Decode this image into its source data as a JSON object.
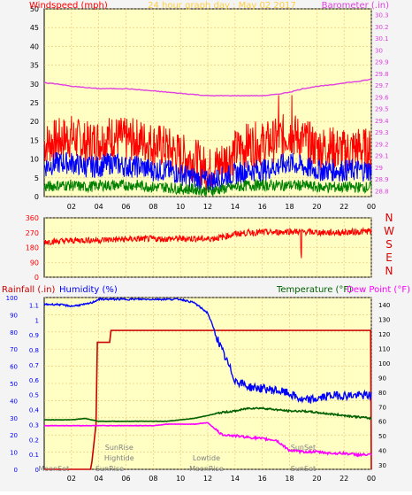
{
  "colors": {
    "frame_bg": "#f4f4f4",
    "plot_bg": "#ffffc4",
    "grid": "#e8c070",
    "wind_gust": "#ff0000",
    "wind_avg": "#0000ff",
    "wind_low": "#008000",
    "barometer": "#e040e0",
    "direction": "#ff0000",
    "rain": "#cc0000",
    "humidity": "#0000ff",
    "temperature": "#006000",
    "dewpoint": "#ff00ff",
    "letters": "#dd0000",
    "event_text": "#808080"
  },
  "top": {
    "left_label": "Windspeed (mph)",
    "title": "24 hour graph day : May 02 2017",
    "right_label": "Barometer (.in)",
    "left_ticks": [
      "0",
      "5",
      "10",
      "15",
      "20",
      "25",
      "30",
      "35",
      "40",
      "45",
      "50"
    ],
    "right_ticks": [
      "28.8",
      "28.9",
      "29",
      "29.1",
      "29.2",
      "29.3",
      "29.4",
      "29.5",
      "29.6",
      "29.7",
      "29.8",
      "29.9",
      "30",
      "30.1",
      "30.2",
      "30.3"
    ]
  },
  "x_ticks": [
    "02",
    "04",
    "06",
    "08",
    "10",
    "12",
    "14",
    "16",
    "18",
    "20",
    "22",
    "00"
  ],
  "direction": {
    "ticks": [
      "360",
      "270",
      "180",
      "90",
      "0"
    ],
    "compass": [
      "N",
      "W",
      "S",
      "E",
      "N"
    ]
  },
  "bottom": {
    "rain_label": "Rainfall (.in)",
    "humidity_label": "Humidity (%)",
    "temp_label": "Temperature (°F)",
    "dew_label": "Dew Point (°F)",
    "left_ticks_hum": [
      "0",
      "10",
      "20",
      "30",
      "40",
      "50",
      "60",
      "70",
      "80",
      "90",
      "100"
    ],
    "left_ticks_rain": [
      "0",
      "0.1",
      "0.2",
      "0.3",
      "0.4",
      "0.5",
      "0.6",
      "0.7",
      "0.8",
      "0.9",
      "1",
      "1.1"
    ],
    "right_ticks": [
      "30",
      "40",
      "50",
      "60",
      "70",
      "80",
      "90",
      "100",
      "110",
      "120",
      "130",
      "140"
    ],
    "events": [
      {
        "text": "MoonSet",
        "hour": 0.7,
        "row": 2
      },
      {
        "text": "SunRise",
        "hour": 5.5,
        "row": 0
      },
      {
        "text": "Hightide",
        "hour": 5.5,
        "row": 1
      },
      {
        "text": "SunRise",
        "hour": 4.8,
        "row": 2
      },
      {
        "text": "Lowtide",
        "hour": 11.9,
        "row": 1
      },
      {
        "text": "MoonRise",
        "hour": 11.9,
        "row": 2
      },
      {
        "text": "SunSet",
        "hour": 19.0,
        "row": 0
      },
      {
        "text": "SunSet",
        "hour": 19.0,
        "row": 2
      }
    ]
  },
  "chart_data": [
    {
      "type": "line",
      "title": "24 hour graph day : May 02 2017",
      "x": [
        0,
        1,
        2,
        3,
        4,
        5,
        6,
        7,
        8,
        9,
        10,
        11,
        12,
        13,
        14,
        15,
        16,
        17,
        18,
        19,
        20,
        21,
        22,
        23,
        24
      ],
      "xlabel": "",
      "ylabel": "Windspeed (mph)",
      "ylim": [
        0,
        50
      ],
      "y2label": "Barometer (.in)",
      "y2lim": [
        28.75,
        30.35
      ],
      "series": [
        {
          "name": "",
          "axis": "left",
          "values": [
            14,
            15,
            16,
            14,
            15,
            16,
            15,
            15,
            14,
            13,
            11,
            10,
            7,
            9,
            12,
            14,
            14,
            15,
            17,
            15,
            13,
            13,
            12,
            13,
            12
          ]
        },
        {
          "name": "",
          "axis": "left",
          "values": [
            8,
            9,
            9,
            8,
            8,
            9,
            8,
            8,
            7,
            7,
            6,
            5,
            4,
            5,
            6,
            7,
            7,
            8,
            9,
            8,
            7,
            7,
            7,
            7,
            7
          ]
        },
        {
          "name": "",
          "axis": "left",
          "values": [
            2.5,
            3,
            3,
            2.5,
            3,
            3,
            3,
            3,
            2.5,
            2.5,
            2,
            2,
            1.5,
            2,
            2.5,
            3,
            3,
            3,
            3,
            3,
            2.5,
            2.5,
            2.5,
            2.5,
            2.5
          ]
        },
        {
          "name": "",
          "axis": "right",
          "values": [
            29.72,
            29.71,
            29.69,
            29.68,
            29.67,
            29.67,
            29.67,
            29.66,
            29.65,
            29.64,
            29.63,
            29.62,
            29.61,
            29.61,
            29.61,
            29.61,
            29.61,
            29.62,
            29.64,
            29.67,
            29.69,
            29.7,
            29.72,
            29.73,
            29.75
          ]
        }
      ]
    },
    {
      "type": "line",
      "x": [
        0,
        1,
        2,
        3,
        4,
        5,
        6,
        7,
        8,
        9,
        10,
        11,
        12,
        13,
        14,
        15,
        16,
        17,
        18,
        19,
        20,
        21,
        22,
        23,
        24
      ],
      "ylim": [
        0,
        360
      ],
      "series": [
        {
          "name": "",
          "values": [
            215,
            218,
            222,
            225,
            225,
            228,
            230,
            232,
            232,
            232,
            234,
            234,
            232,
            242,
            262,
            270,
            272,
            272,
            278,
            275,
            272,
            270,
            272,
            275,
            280
          ]
        }
      ]
    },
    {
      "type": "line",
      "x": [
        0,
        1,
        2,
        3,
        3.5,
        4,
        5,
        6,
        7,
        8,
        9,
        10,
        11,
        12,
        13,
        14,
        15,
        16,
        17,
        18,
        19,
        20,
        21,
        22,
        23,
        24
      ],
      "ylabel": "Humidity (%)",
      "ylim": [
        0,
        100
      ],
      "y2label": "Temperature (°F) / Dew Point (°F)",
      "y2lim": [
        27,
        145
      ],
      "series": [
        {
          "name": "",
          "axis": "left",
          "values": [
            96,
            96,
            95,
            96,
            97,
            99,
            99,
            99,
            99,
            99,
            99,
            99,
            97,
            91,
            70,
            52,
            48,
            47,
            46,
            44,
            40,
            41,
            43,
            43,
            43,
            43
          ]
        },
        {
          "name": "",
          "axis": "right",
          "values": [
            61,
            61,
            61,
            62,
            61,
            60,
            60,
            60,
            60,
            60,
            60,
            61,
            62,
            64,
            66,
            67,
            69,
            69,
            68,
            67,
            67,
            66,
            65,
            64,
            63,
            62
          ]
        },
        {
          "name": "",
          "axis": "right",
          "values": [
            57,
            57,
            57,
            57,
            57,
            57,
            57,
            57,
            57,
            57,
            58,
            58,
            58,
            59,
            51,
            50,
            49,
            48,
            47,
            40,
            39,
            39,
            38,
            38,
            37,
            37
          ]
        },
        {
          "name": "",
          "axis": "rain",
          "values": [
            0,
            0,
            0,
            0,
            0.05,
            0.85,
            0.93,
            0.93,
            0.93,
            0.93,
            0.93,
            0.93,
            0.93,
            0.93,
            0.93,
            0.93,
            0.93,
            0.93,
            0.93,
            0.93,
            0.93,
            0.93,
            0.93,
            0.93,
            0.93,
            0
          ]
        }
      ]
    }
  ]
}
